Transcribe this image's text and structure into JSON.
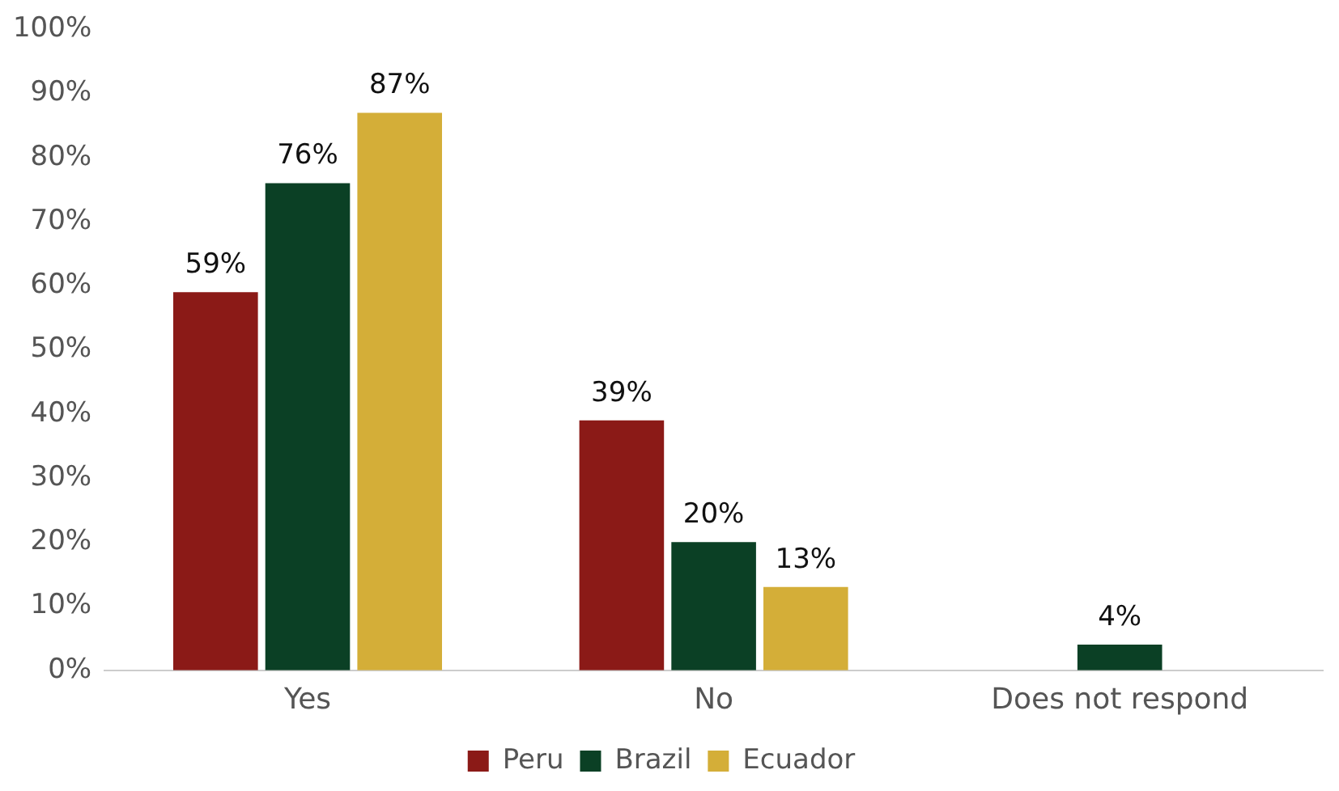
{
  "chart_data": {
    "type": "bar",
    "categories": [
      "Yes",
      "No",
      "Does not respond"
    ],
    "series": [
      {
        "name": "Peru",
        "color": "#8b1a17",
        "values": [
          59,
          39,
          null
        ],
        "value_labels": [
          "59%",
          "39%",
          null
        ]
      },
      {
        "name": "Brazil",
        "color": "#0b4025",
        "values": [
          76,
          20,
          4
        ],
        "value_labels": [
          "76%",
          "20%",
          "4%"
        ]
      },
      {
        "name": "Ecuador",
        "color": "#d4ae38",
        "values": [
          87,
          13,
          null
        ],
        "value_labels": [
          "87%",
          "13%",
          null
        ]
      }
    ],
    "ylim": [
      0,
      100
    ],
    "yticks": [
      {
        "value": 0,
        "label": "0%"
      },
      {
        "value": 10,
        "label": "10%"
      },
      {
        "value": 20,
        "label": "20%"
      },
      {
        "value": 30,
        "label": "30%"
      },
      {
        "value": 40,
        "label": "40%"
      },
      {
        "value": 50,
        "label": "50%"
      },
      {
        "value": 60,
        "label": "60%"
      },
      {
        "value": 70,
        "label": "70%"
      },
      {
        "value": 80,
        "label": "80%"
      },
      {
        "value": 90,
        "label": "90%"
      },
      {
        "value": 100,
        "label": "100%"
      }
    ],
    "grid": false,
    "legend": "bottom"
  }
}
